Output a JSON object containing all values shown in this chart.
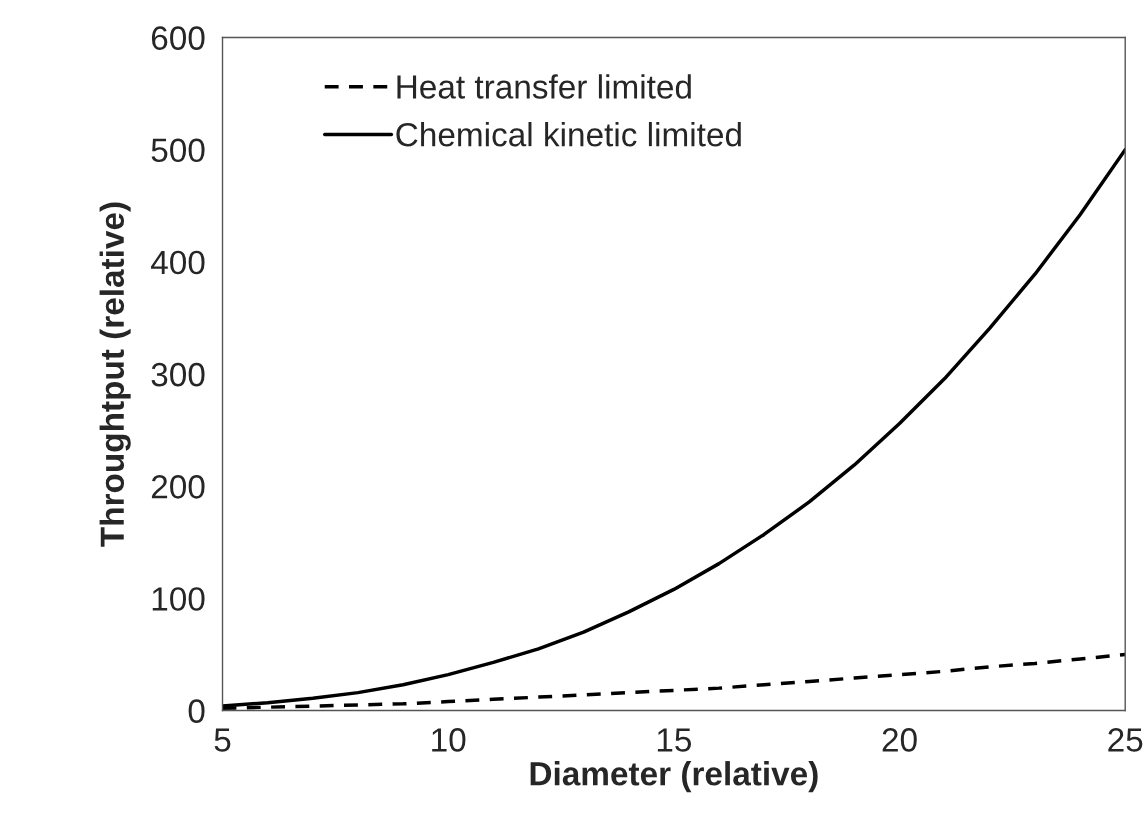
{
  "chart_data": {
    "type": "line",
    "xlabel": "Diameter (relative)",
    "ylabel": "Throughtput (relative)",
    "x": [
      5,
      6,
      7,
      8,
      9,
      10,
      11,
      12,
      13,
      14,
      15,
      16,
      17,
      18,
      19,
      20,
      21,
      22,
      23,
      24,
      25
    ],
    "series": [
      {
        "name": "Heat transfer limited",
        "color": "#000000",
        "line_style": "dashed",
        "values": [
          2,
          3,
          4,
          5,
          6,
          8,
          10,
          12,
          14,
          16,
          18,
          20,
          23,
          26,
          29,
          32,
          35,
          39,
          42,
          46,
          50
        ]
      },
      {
        "name": "Chemical kinetic limited",
        "color": "#000000",
        "line_style": "solid",
        "values": [
          4,
          7,
          11,
          16,
          23,
          32,
          43,
          55,
          70,
          88,
          108,
          131,
          157,
          186,
          219,
          256,
          296,
          341,
          389,
          442,
          500
        ]
      }
    ],
    "xlim": [
      5,
      25
    ],
    "xticks": [
      5,
      10,
      15,
      20,
      25
    ],
    "ylim": [
      0,
      600
    ],
    "yticks": [
      0,
      100,
      200,
      300,
      400,
      500,
      600
    ],
    "grid": false,
    "legend": "top left",
    "marker": "none"
  }
}
